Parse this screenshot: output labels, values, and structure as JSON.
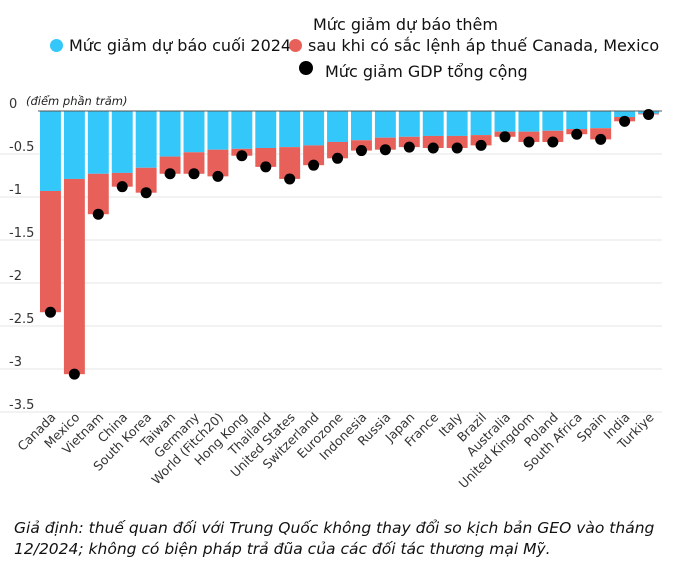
{
  "chart_data": {
    "type": "bar",
    "stacked": true,
    "title": "",
    "unit_label": "(điểm phần trăm)",
    "xlabel": "",
    "ylabel": "",
    "ylim": [
      -3.5,
      0
    ],
    "yticks": [
      0,
      -0.5,
      -1,
      -1.5,
      -2,
      -2.5,
      -3,
      -3.5
    ],
    "ytick_labels": [
      "0",
      "-0.5",
      "-1",
      "-1.5",
      "-2",
      "-2.5",
      "-3",
      "-3.5"
    ],
    "grid": true,
    "legend_position": "top",
    "categories": [
      "Canada",
      "Mexico",
      "Vietnam",
      "China",
      "South Korea",
      "Taiwan",
      "Germany",
      "World (Fitch20)",
      "Hong Kong",
      "Thailand",
      "United States",
      "Switzerland",
      "Eurozone",
      "Indonesia",
      "Russia",
      "Japan",
      "France",
      "Italy",
      "Brazil",
      "Australia",
      "United Kingdom",
      "Poland",
      "South Africa",
      "Spain",
      "India",
      "Turkiye"
    ],
    "series": [
      {
        "name": "Mức giảm dự báo cuối 2024",
        "color": "#33c7fa",
        "kind": "bar",
        "values": [
          -0.93,
          -0.79,
          -0.73,
          -0.72,
          -0.66,
          -0.53,
          -0.48,
          -0.45,
          -0.44,
          -0.43,
          -0.42,
          -0.4,
          -0.36,
          -0.34,
          -0.31,
          -0.3,
          -0.29,
          -0.29,
          -0.28,
          -0.24,
          -0.24,
          -0.23,
          -0.21,
          -0.2,
          -0.07,
          -0.03
        ]
      },
      {
        "name": "Mức giảm dự báo thêm sau khi có sắc lệnh áp thuế Canada, Mexico",
        "color": "#e8605a",
        "kind": "bar",
        "values": [
          -1.41,
          -2.27,
          -0.47,
          -0.16,
          -0.29,
          -0.2,
          -0.25,
          -0.31,
          -0.08,
          -0.22,
          -0.37,
          -0.23,
          -0.19,
          -0.12,
          -0.14,
          -0.12,
          -0.14,
          -0.14,
          -0.12,
          -0.06,
          -0.12,
          -0.13,
          -0.06,
          -0.13,
          -0.05,
          -0.01
        ]
      },
      {
        "name": "Mức giảm GDP tổng cộng",
        "color": "#000000",
        "kind": "dot",
        "values": [
          -2.34,
          -3.06,
          -1.2,
          -0.88,
          -0.95,
          -0.73,
          -0.73,
          -0.76,
          -0.52,
          -0.65,
          -0.79,
          -0.63,
          -0.55,
          -0.46,
          -0.45,
          -0.42,
          -0.43,
          -0.43,
          -0.4,
          -0.3,
          -0.36,
          -0.36,
          -0.27,
          -0.33,
          -0.12,
          -0.04
        ]
      }
    ]
  },
  "legend": {
    "item1": "Mức giảm dự báo cuối 2024",
    "item2_line1": "Mức giảm dự báo thêm",
    "item2_line2": "sau khi có sắc lệnh áp thuế Canada, Mexico",
    "item3": "Mức giảm GDP tổng cộng"
  },
  "footnote": "Giả định: thuế quan đối với Trung Quốc không thay đổi so kịch bản GEO vào tháng 12/2024; không có biện pháp trả đũa của các đối tác thương mại Mỹ."
}
